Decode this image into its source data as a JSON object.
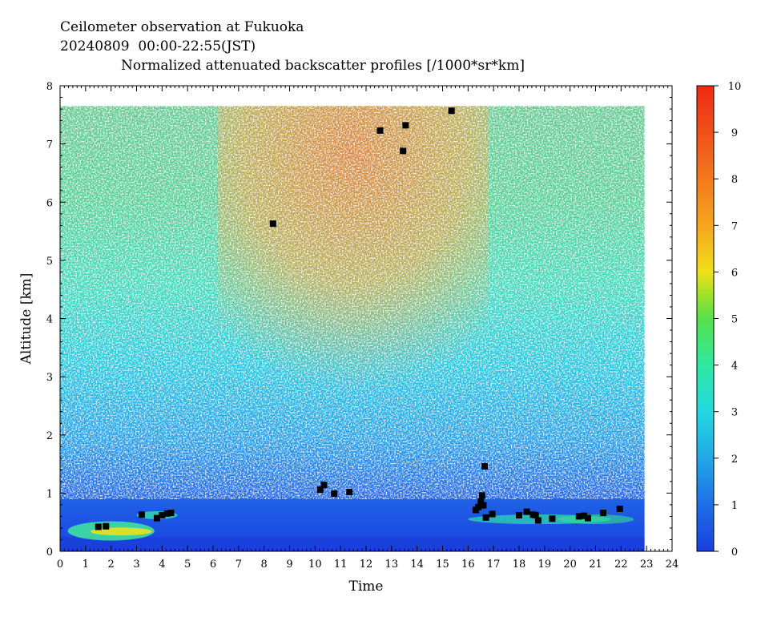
{
  "header": {
    "line1": "Ceilometer observation at Fukuoka",
    "line2": "20240809  00:00-22:55(JST)",
    "line3": "Normalized attenuated backscatter profiles [/1000*sr*km]"
  },
  "chart_data": {
    "type": "heatmap",
    "title": "Normalized attenuated backscatter profiles [/1000*sr*km]",
    "xlabel": "Time",
    "ylabel": "Altitude [km]",
    "xlim": [
      0,
      24
    ],
    "ylim": [
      0,
      8
    ],
    "x_ticks": [
      0,
      1,
      2,
      3,
      4,
      5,
      6,
      7,
      8,
      9,
      10,
      11,
      12,
      13,
      14,
      15,
      16,
      17,
      18,
      19,
      20,
      21,
      22,
      23,
      24
    ],
    "y_ticks": [
      0,
      1,
      2,
      3,
      4,
      5,
      6,
      7,
      8
    ],
    "data_extent": {
      "time_end": 22.92,
      "altitude_top": 7.65
    },
    "colorbar": {
      "range": [
        0,
        10
      ],
      "ticks": [
        0,
        1,
        2,
        3,
        4,
        5,
        6,
        7,
        8,
        9,
        10
      ],
      "colors": [
        "#1a3fe0",
        "#1d6fe8",
        "#21a8e8",
        "#22d8e0",
        "#2ee8a0",
        "#55e24a",
        "#9ee228",
        "#f0e01a",
        "#f6a51c",
        "#f2641c",
        "#ef2a12"
      ]
    },
    "cloud_base_points": [
      {
        "t": 1.5,
        "alt": 0.42
      },
      {
        "t": 1.8,
        "alt": 0.43
      },
      {
        "t": 3.2,
        "alt": 0.63
      },
      {
        "t": 3.8,
        "alt": 0.57
      },
      {
        "t": 4.0,
        "alt": 0.62
      },
      {
        "t": 4.2,
        "alt": 0.65
      },
      {
        "t": 4.35,
        "alt": 0.66
      },
      {
        "t": 8.35,
        "alt": 5.63
      },
      {
        "t": 10.2,
        "alt": 1.06
      },
      {
        "t": 10.35,
        "alt": 1.14
      },
      {
        "t": 10.75,
        "alt": 0.99
      },
      {
        "t": 11.35,
        "alt": 1.02
      },
      {
        "t": 12.55,
        "alt": 7.23
      },
      {
        "t": 13.45,
        "alt": 6.88
      },
      {
        "t": 13.55,
        "alt": 7.32
      },
      {
        "t": 15.35,
        "alt": 7.57
      },
      {
        "t": 16.3,
        "alt": 0.71
      },
      {
        "t": 16.4,
        "alt": 0.76
      },
      {
        "t": 16.5,
        "alt": 0.86
      },
      {
        "t": 16.55,
        "alt": 0.96
      },
      {
        "t": 16.6,
        "alt": 0.79
      },
      {
        "t": 16.65,
        "alt": 1.46
      },
      {
        "t": 16.7,
        "alt": 0.58
      },
      {
        "t": 16.95,
        "alt": 0.64
      },
      {
        "t": 18.0,
        "alt": 0.62
      },
      {
        "t": 18.3,
        "alt": 0.68
      },
      {
        "t": 18.55,
        "alt": 0.63
      },
      {
        "t": 18.65,
        "alt": 0.62
      },
      {
        "t": 18.75,
        "alt": 0.53
      },
      {
        "t": 19.3,
        "alt": 0.56
      },
      {
        "t": 20.35,
        "alt": 0.6
      },
      {
        "t": 20.55,
        "alt": 0.61
      },
      {
        "t": 20.7,
        "alt": 0.57
      },
      {
        "t": 21.3,
        "alt": 0.66
      },
      {
        "t": 21.95,
        "alt": 0.73
      }
    ]
  }
}
